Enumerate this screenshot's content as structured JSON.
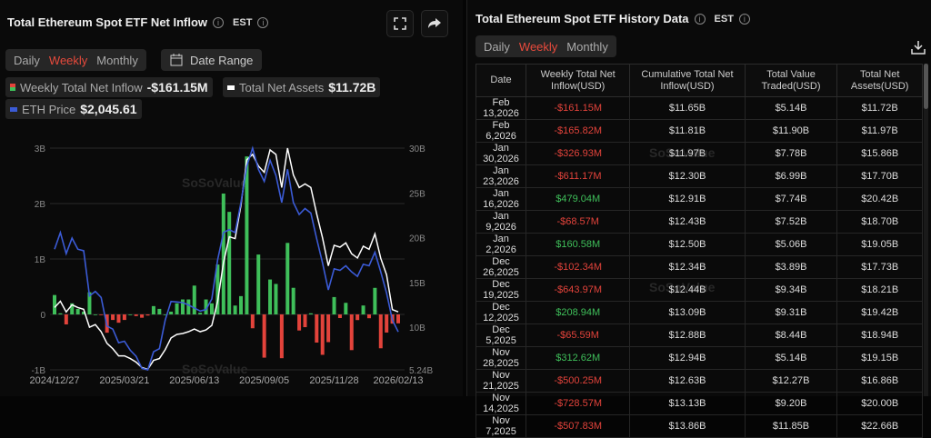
{
  "left": {
    "title": "Total Ethereum Spot ETF Net Inflow",
    "timezone": "EST",
    "periods": [
      "Daily",
      "Weekly",
      "Monthly"
    ],
    "active_period": "Weekly",
    "date_range_label": "Date Range",
    "legend": {
      "inflow_label": "Weekly Total Net Inflow",
      "inflow_value": "-$161.15M",
      "assets_label": "Total Net Assets",
      "assets_value": "$11.72B",
      "eth_label": "ETH Price",
      "eth_value": "$2,045.61"
    },
    "watermark": "SoSoValue"
  },
  "right": {
    "title": "Total Ethereum Spot ETF History Data",
    "timezone": "EST",
    "periods": [
      "Daily",
      "Weekly",
      "Monthly"
    ],
    "active_period": "Weekly",
    "columns": [
      "Date",
      "Weekly Total Net Inflow(USD)",
      "Cumulative Total Net Inflow(USD)",
      "Total Value Traded(USD)",
      "Total Net Assets(USD)"
    ],
    "rows": [
      [
        "Feb 13,2026",
        "-$161.15M",
        "$11.65B",
        "$5.14B",
        "$11.72B"
      ],
      [
        "Feb 6,2026",
        "-$165.82M",
        "$11.81B",
        "$11.90B",
        "$11.97B"
      ],
      [
        "Jan 30,2026",
        "-$326.93M",
        "$11.97B",
        "$7.78B",
        "$15.86B"
      ],
      [
        "Jan 23,2026",
        "-$611.17M",
        "$12.30B",
        "$6.99B",
        "$17.70B"
      ],
      [
        "Jan 16,2026",
        "$479.04M",
        "$12.91B",
        "$7.74B",
        "$20.42B"
      ],
      [
        "Jan 9,2026",
        "-$68.57M",
        "$12.43B",
        "$7.52B",
        "$18.70B"
      ],
      [
        "Jan 2,2026",
        "$160.58M",
        "$12.50B",
        "$5.06B",
        "$19.05B"
      ],
      [
        "Dec 26,2025",
        "-$102.34M",
        "$12.34B",
        "$3.89B",
        "$17.73B"
      ],
      [
        "Dec 19,2025",
        "-$643.97M",
        "$12.44B",
        "$9.34B",
        "$18.21B"
      ],
      [
        "Dec 12,2025",
        "$208.94M",
        "$13.09B",
        "$9.31B",
        "$19.42B"
      ],
      [
        "Dec 5,2025",
        "-$65.59M",
        "$12.88B",
        "$8.44B",
        "$18.94B"
      ],
      [
        "Nov 28,2025",
        "$312.62M",
        "$12.94B",
        "$5.14B",
        "$19.15B"
      ],
      [
        "Nov 21,2025",
        "-$500.25M",
        "$12.63B",
        "$12.27B",
        "$16.86B"
      ],
      [
        "Nov 14,2025",
        "-$728.57M",
        "$13.13B",
        "$9.20B",
        "$20.00B"
      ],
      [
        "Nov 7,2025",
        "-$507.83M",
        "$13.86B",
        "$11.85B",
        "$22.66B"
      ]
    ],
    "watermark": "SoSoValue"
  },
  "colors": {
    "positive": "#3fbf5a",
    "negative": "#e3433b",
    "assets": "#ffffff",
    "eth": "#3b5bd6",
    "active": "#e84a3c"
  },
  "chart_data": {
    "type": "bar+line",
    "x_ticks": [
      "2024/12/27",
      "2025/03/21",
      "2025/06/13",
      "2025/09/05",
      "2025/11/28",
      "2026/02/13"
    ],
    "y_left": {
      "ticks": [
        "3B",
        "2B",
        "1B",
        "0",
        "-1B"
      ],
      "range_billion": [
        -1,
        3
      ]
    },
    "y_right": {
      "ticks": [
        "30B",
        "25B",
        "20B",
        "15B",
        "10B",
        "5.24B"
      ],
      "range_billion": [
        5.24,
        30
      ]
    },
    "grid": true,
    "dates": [
      "2024-12-27",
      "2025-01-03",
      "2025-01-10",
      "2025-01-17",
      "2025-01-24",
      "2025-01-31",
      "2025-02-07",
      "2025-02-14",
      "2025-02-21",
      "2025-02-28",
      "2025-03-07",
      "2025-03-14",
      "2025-03-21",
      "2025-03-28",
      "2025-04-04",
      "2025-04-11",
      "2025-04-18",
      "2025-04-25",
      "2025-05-02",
      "2025-05-09",
      "2025-05-16",
      "2025-05-23",
      "2025-05-30",
      "2025-06-06",
      "2025-06-13",
      "2025-06-20",
      "2025-06-27",
      "2025-07-04",
      "2025-07-11",
      "2025-07-18",
      "2025-07-25",
      "2025-08-01",
      "2025-08-08",
      "2025-08-15",
      "2025-08-22",
      "2025-08-29",
      "2025-09-05",
      "2025-09-12",
      "2025-09-19",
      "2025-09-26",
      "2025-10-03",
      "2025-10-10",
      "2025-10-17",
      "2025-10-24",
      "2025-10-31",
      "2025-11-07",
      "2025-11-14",
      "2025-11-21",
      "2025-11-28",
      "2025-12-05",
      "2025-12-12",
      "2025-12-19",
      "2025-12-26",
      "2026-01-02",
      "2026-01-09",
      "2026-01-16",
      "2026-01-23",
      "2026-01-30",
      "2026-02-06",
      "2026-02-13"
    ],
    "series": [
      {
        "name": "Weekly Total Net Inflow",
        "unit": "B USD",
        "axis": "left",
        "kind": "bar",
        "values": [
          0.35,
          0.02,
          -0.18,
          0.2,
          0.1,
          0.05,
          0.4,
          0,
          -0.01,
          -0.33,
          -0.1,
          -0.15,
          -0.1,
          0,
          -0.03,
          -0.06,
          -0.02,
          0.15,
          0.1,
          0,
          0.05,
          0.2,
          0.27,
          0.27,
          0.52,
          0.03,
          0.27,
          0.2,
          0.9,
          2.18,
          1.85,
          0.16,
          0.33,
          2.85,
          -0.25,
          1.08,
          -0.78,
          0.63,
          0.55,
          -0.79,
          1.29,
          0.48,
          -0.29,
          -0.23,
          0.02,
          -0.508,
          -0.729,
          -0.5,
          0.313,
          -0.066,
          0.209,
          -0.644,
          -0.102,
          0.161,
          -0.069,
          0.479,
          -0.611,
          -0.327,
          -0.166,
          -0.161
        ]
      },
      {
        "name": "Total Net Assets",
        "unit": "B USD",
        "axis": "right",
        "kind": "line",
        "values": [
          12.2,
          12.9,
          11.7,
          12.5,
          12.2,
          12.0,
          10.0,
          10.3,
          9.5,
          8.2,
          7.6,
          6.8,
          6.8,
          6.5,
          6.1,
          5.5,
          5.3,
          6.3,
          6.5,
          7.5,
          8.8,
          9.2,
          9.3,
          9.5,
          9.8,
          9.5,
          9.7,
          10.2,
          12.9,
          17.2,
          20.1,
          19.9,
          23.6,
          28.7,
          29.3,
          28.0,
          27.3,
          29.8,
          29.3,
          25.6,
          30.0,
          27.0,
          25.6,
          26.0,
          25.6,
          22.66,
          20.0,
          16.86,
          19.15,
          18.94,
          19.42,
          18.21,
          17.73,
          19.05,
          18.7,
          20.42,
          17.7,
          15.86,
          11.97,
          11.72
        ]
      },
      {
        "name": "ETH Price",
        "unit": "USD",
        "axis": "hidden",
        "kind": "line",
        "range": [
          1470,
          4830
        ],
        "values": [
          3298,
          3550,
          3230,
          3467,
          3298,
          3275,
          2590,
          2658,
          2567,
          2133,
          2087,
          1881,
          1904,
          1767,
          1676,
          1493,
          1470,
          1744,
          1790,
          2224,
          2507,
          2498,
          2489,
          2453,
          2407,
          2361,
          2384,
          2544,
          3138,
          3550,
          3595,
          3550,
          4006,
          4555,
          4830,
          4509,
          4326,
          4646,
          4418,
          4006,
          4509,
          4006,
          3824,
          3915,
          3846,
          3458,
          3092,
          2681,
          3001,
          2978,
          3047,
          2955,
          2887,
          3070,
          3047,
          3252,
          2955,
          2635,
          2224,
          2045.61
        ]
      }
    ]
  }
}
